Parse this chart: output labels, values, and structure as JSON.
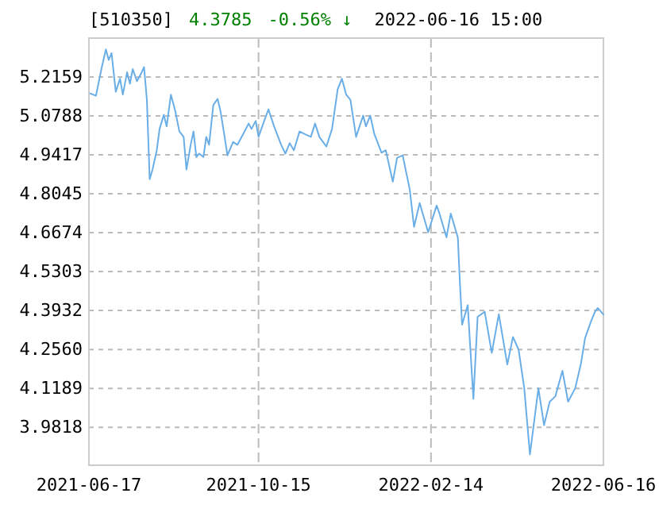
{
  "chart_data": {
    "type": "line",
    "title": "[510350]",
    "annotations": [
      "4.3785",
      "-0.56% ↓",
      "2022-06-16 15:00"
    ],
    "x": [
      "2021-06-18",
      "2021-06-22",
      "2021-06-26",
      "2021-06-29",
      "2021-07-01",
      "2021-07-03",
      "2021-07-06",
      "2021-07-09",
      "2021-07-11",
      "2021-07-14",
      "2021-07-16",
      "2021-07-18",
      "2021-07-21",
      "2021-07-24",
      "2021-07-26",
      "2021-07-28",
      "2021-07-30",
      "2021-08-01",
      "2021-08-04",
      "2021-08-06",
      "2021-08-09",
      "2021-08-11",
      "2021-08-14",
      "2021-08-17",
      "2021-08-20",
      "2021-08-23",
      "2021-08-25",
      "2021-08-28",
      "2021-08-30",
      "2021-09-01",
      "2021-09-03",
      "2021-09-06",
      "2021-09-08",
      "2021-09-10",
      "2021-09-13",
      "2021-09-16",
      "2021-09-18",
      "2021-09-21",
      "2021-09-23",
      "2021-09-27",
      "2021-09-30",
      "2021-10-04",
      "2021-10-08",
      "2021-10-10",
      "2021-10-13",
      "2021-10-15",
      "2021-10-19",
      "2021-10-22",
      "2021-10-26",
      "2021-10-31",
      "2021-11-03",
      "2021-11-06",
      "2021-11-09",
      "2021-11-13",
      "2021-11-17",
      "2021-11-21",
      "2021-11-24",
      "2021-11-27",
      "2021-12-02",
      "2021-12-06",
      "2021-12-10",
      "2021-12-13",
      "2021-12-16",
      "2021-12-19",
      "2021-12-23",
      "2021-12-28",
      "2021-12-30",
      "2022-01-02",
      "2022-01-05",
      "2022-01-10",
      "2022-01-13",
      "2022-01-18",
      "2022-01-21",
      "2022-01-25",
      "2022-01-30",
      "2022-02-02",
      "2022-02-06",
      "2022-02-12",
      "2022-02-18",
      "2022-02-20",
      "2022-02-25",
      "2022-02-28",
      "2022-03-05",
      "2022-03-06",
      "2022-03-08",
      "2022-03-12",
      "2022-03-16",
      "2022-03-19",
      "2022-03-24",
      "2022-03-29",
      "2022-04-03",
      "2022-04-09",
      "2022-04-13",
      "2022-04-17",
      "2022-04-21",
      "2022-04-25",
      "2022-05-01",
      "2022-05-05",
      "2022-05-09",
      "2022-05-13",
      "2022-05-18",
      "2022-05-22",
      "2022-05-27",
      "2022-05-31",
      "2022-06-03",
      "2022-06-07",
      "2022-06-10",
      "2022-06-12",
      "2022-06-16"
    ],
    "series": [
      {
        "color": "#6aaee8",
        "values": [
          5.158,
          5.15,
          5.248,
          5.313,
          5.276,
          5.3,
          5.164,
          5.21,
          5.154,
          5.233,
          5.192,
          5.244,
          5.201,
          5.229,
          5.251,
          5.136,
          4.856,
          4.89,
          4.958,
          5.033,
          5.083,
          5.042,
          5.154,
          5.098,
          5.024,
          5.005,
          4.89,
          4.977,
          5.024,
          4.934,
          4.946,
          4.934,
          5.005,
          4.977,
          5.117,
          5.139,
          5.098,
          5.005,
          4.94,
          4.987,
          4.977,
          5.014,
          5.052,
          5.033,
          5.061,
          5.005,
          5.061,
          5.102,
          5.042,
          4.977,
          4.946,
          4.983,
          4.958,
          5.024,
          5.014,
          5.005,
          5.052,
          5.005,
          4.971,
          5.033,
          5.173,
          5.21,
          5.154,
          5.136,
          5.005,
          5.08,
          5.042,
          5.08,
          5.014,
          4.949,
          4.958,
          4.847,
          4.931,
          4.94,
          4.819,
          4.688,
          4.772,
          4.669,
          4.763,
          4.735,
          4.651,
          4.735,
          4.651,
          4.539,
          4.343,
          4.412,
          4.082,
          4.371,
          4.389,
          4.244,
          4.38,
          4.203,
          4.3,
          4.255,
          4.119,
          3.886,
          4.119,
          3.989,
          4.072,
          4.091,
          4.181,
          4.072,
          4.119,
          4.203,
          4.296,
          4.352,
          4.389,
          4.402,
          4.379
        ]
      }
    ],
    "xlim": [
      "2021-06-17",
      "2022-06-16"
    ],
    "xticks": [
      {
        "value": "2021-06-17",
        "label": "2021-06-17"
      },
      {
        "value": "2021-10-15",
        "label": "2021-10-15"
      },
      {
        "value": "2022-02-14",
        "label": "2022-02-14"
      },
      {
        "value": "2022-06-16",
        "label": "2022-06-16"
      }
    ],
    "ylim": [
      3.848,
      5.353
    ],
    "yticks": [
      3.9818,
      4.1189,
      {
        "value": 4.256,
        "label": "4.2560"
      },
      4.3932,
      4.5303,
      4.6674,
      4.8045,
      4.9417,
      5.0788,
      5.2159
    ],
    "grid": true,
    "line_style": "solid",
    "marker": "none"
  }
}
